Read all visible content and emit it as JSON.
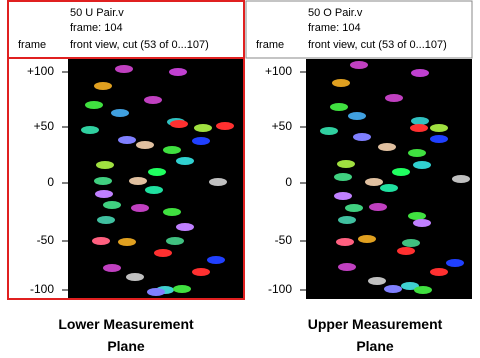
{
  "panels": [
    {
      "title": "50 U Pair.v",
      "frame": "frame: 104",
      "row_label": "frame",
      "view": "front view, cut (53 of 0...107)",
      "y_labels": [
        "+100",
        "+50",
        "0",
        "-50",
        "-100"
      ],
      "caption": "Lower Measurement Plane"
    },
    {
      "title": "50 O Pair.v",
      "frame": "frame: 104",
      "row_label": "frame",
      "view": "front view, cut (53 of 0...107)",
      "y_labels": [
        "+100",
        "+50",
        "0",
        "-50",
        "-100"
      ],
      "caption": "Upper Measurement Plane"
    }
  ]
}
